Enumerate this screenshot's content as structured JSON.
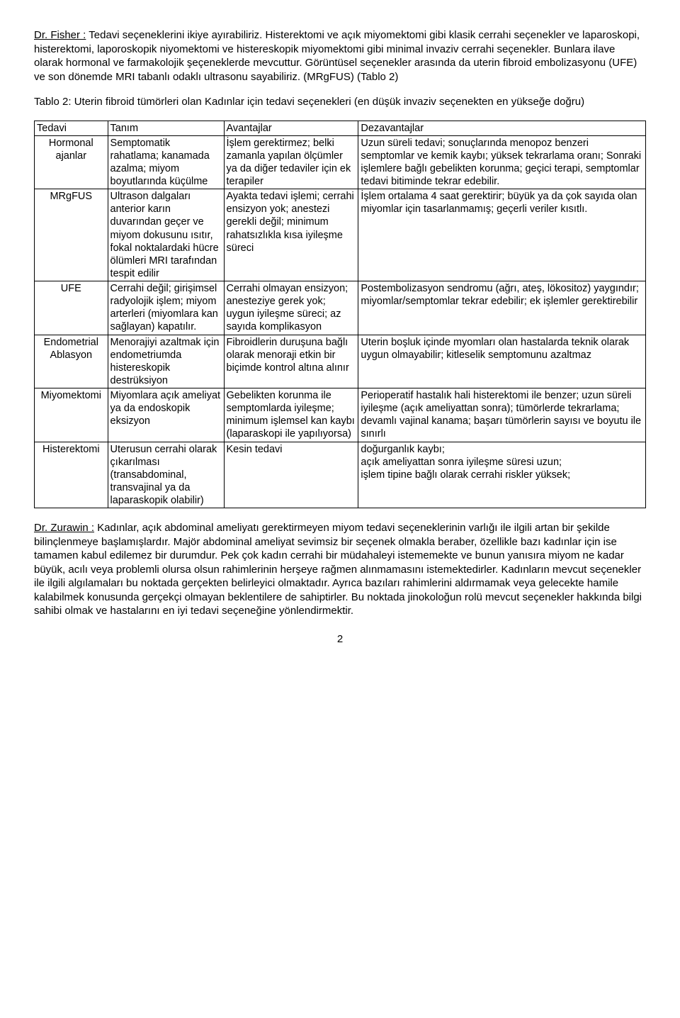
{
  "para1_speaker": "Dr. Fisher :",
  "para1_body": " Tedavi seçeneklerini ikiye ayırabiliriz. Histerektomi ve açık miyomektomi gibi klasik cerrahi seçenekler ve laparoskopi, histerektomi, laporoskopik niyomektomi ve histereskopik miyomektomi gibi minimal invaziv cerrahi seçenekler. Bunlara ilave olarak hormonal ve farmakolojik şeçeneklerde mevcuttur. Görüntüsel seçenekler arasında da uterin fibroid embolizasyonu (UFE) ve son dönemde MRI tabanlı odaklı ultrasonu sayabiliriz. (MRgFUS) (Tablo 2)",
  "table_caption": "Tablo 2: Uterin fibroid tümörleri olan Kadınlar için tedavi seçenekleri (en düşük invaziv seçenekten en yükseğe doğru)",
  "headers": {
    "c0": "Tedavi",
    "c1": "Tanım",
    "c2": "Avantajlar",
    "c3": "Dezavantajlar"
  },
  "rows": [
    {
      "c0": "Hormonal ajanlar",
      "c1": "Semptomatik rahatlama; kanamada azalma; miyom boyutlarında küçülme",
      "c2": "İşlem gerektirmez; belki zamanla yapılan ölçümler ya da diğer tedaviler için ek terapiler",
      "c3": "Uzun süreli tedavi; sonuçlarında menopoz benzeri semptomlar ve kemik kaybı; yüksek tekrarlama oranı; Sonraki işlemlere bağlı gebelikten korunma; geçici terapi, semptomlar tedavi bitiminde tekrar edebilir."
    },
    {
      "c0": "MRgFUS",
      "c1": "Ultrason dalgaları anterior karın duvarından geçer ve miyom dokusunu ısıtır, fokal noktalardaki hücre ölümleri MRI tarafından tespit edilir",
      "c2": "Ayakta tedavi işlemi; cerrahi ensizyon yok; anestezi gerekli değil; minimum rahatsızlıkla kısa iyileşme süreci",
      "c3": "İşlem ortalama 4 saat gerektirir; büyük ya da çok sayıda olan miyomlar için tasarlanmamış; geçerli veriler kısıtlı."
    },
    {
      "c0": "UFE",
      "c1": "Cerrahi değil; girişimsel radyolojik işlem; miyom arterleri (miyomlara kan sağlayan) kapatılır.",
      "c2": "Cerrahi olmayan ensizyon; anesteziye gerek yok; uygun iyileşme süreci; az sayıda komplikasyon",
      "c3": "Postembolizasyon sendromu (ağrı, ateş, lökositoz) yaygındır; miyomlar/semptomlar tekrar edebilir; ek işlemler gerektirebilir"
    },
    {
      "c0": "Endometrial Ablasyon",
      "c1": "Menorajiyi azaltmak için endometriumda histereskopik destrüksiyon",
      "c2": "Fibroidlerin duruşuna bağlı olarak menoraji etkin bir biçimde kontrol altına alınır",
      "c3": "Uterin boşluk içinde myomları olan hastalarda teknik olarak uygun olmayabilir; kitleselik semptomunu azaltmaz"
    },
    {
      "c0": "Miyomektomi",
      "c1": "Miyomlara açık ameliyat ya da endoskopik eksizyon",
      "c2": "Gebelikten korunma ile semptomlarda iyileşme; minimum işlemsel kan kaybı (laparaskopi ile yapılıyorsa)",
      "c3": "Perioperatif hastalık hali histerektomi ile benzer; uzun süreli iyileşme (açık ameliyattan sonra); tümörlerde tekrarlama; devamlı vajinal kanama; başarı tümörlerin sayısı ve boyutu ile sınırlı"
    },
    {
      "c0": "Histerektomi",
      "c1": "Uterusun cerrahi olarak çıkarılması (transabdominal, transvajinal ya da laparaskopik olabilir)",
      "c2": "Kesin tedavi",
      "c3": "doğurganlık kaybı;\naçık ameliyattan sonra iyileşme süresi uzun;\nişlem tipine bağlı olarak cerrahi riskler yüksek;"
    }
  ],
  "para2_speaker": "Dr. Zurawin :",
  "para2_body": " Kadınlar, açık abdominal ameliyatı gerektirmeyen miyom tedavi seçeneklerinin varlığı ile ilgili artan bir şekilde bilinçlenmeye başlamışlardır. Majör abdominal ameliyat sevimsiz bir seçenek olmakla beraber, özellikle bazı kadınlar için ise tamamen kabul edilemez bir durumdur. Pek çok kadın cerrahi bir müdahaleyi istememekte ve bunun yanısıra miyom ne kadar büyük, acılı veya problemli olursa olsun rahimlerinin herşeye rağmen alınmamasını istemektedirler. Kadınların mevcut seçenekler ile ilgili algılamaları bu noktada gerçekten belirleyici olmaktadır. Ayrıca bazıları rahimlerini aldırmamak veya gelecekte hamile kalabilmek konusunda gerçekçi olmayan beklentilere de sahiptirler. Bu noktada jinokoloğun rolü mevcut seçenekler hakkında bilgi sahibi olmak ve hastalarını en  iyi tedavi seçeneğine yönlendirmektir.",
  "page_number": "2"
}
